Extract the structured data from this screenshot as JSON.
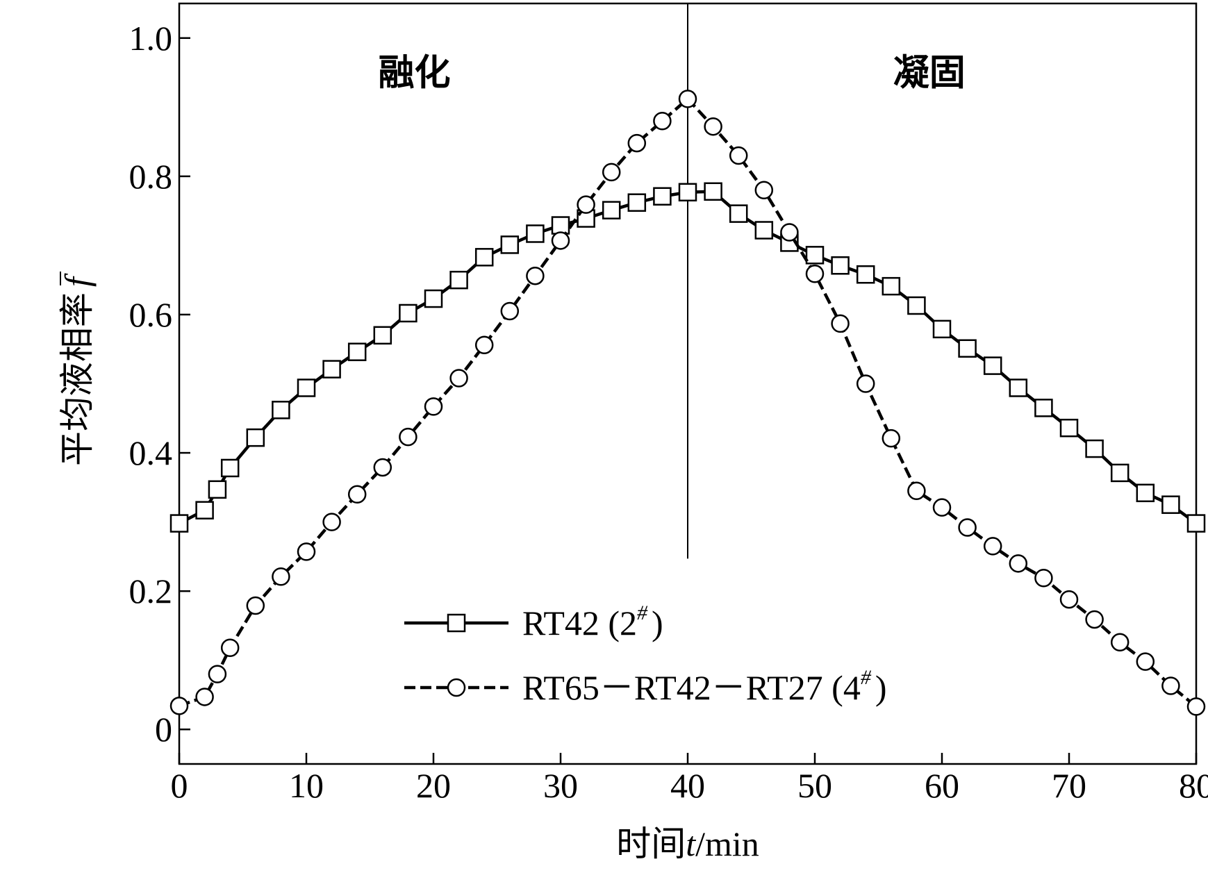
{
  "chart_data": {
    "type": "line",
    "title": "",
    "xlabel_prefix": "时间",
    "xlabel_var": "t",
    "xlabel_unit": "/min",
    "ylabel_text": "平均液相率",
    "ylabel_var": "f",
    "xlim": [
      0,
      80
    ],
    "ylim": [
      -0.05,
      1.05
    ],
    "xticks": [
      0,
      10,
      20,
      30,
      40,
      50,
      60,
      70,
      80
    ],
    "xtick_labels": [
      "0",
      "10",
      "20",
      "30",
      "40",
      "50",
      "60",
      "70",
      "80"
    ],
    "yticks": [
      0,
      0.2,
      0.4,
      0.6,
      0.8,
      1.0
    ],
    "ytick_labels": [
      "0",
      "0.2",
      "0.4",
      "0.6",
      "0.8",
      "1.0"
    ],
    "grid": false,
    "legend_position": "bottom-center",
    "divider_x": 40,
    "annotations": [
      {
        "text": "融化",
        "x": 18.5,
        "y": 0.95
      },
      {
        "text": "凝固",
        "x": 59,
        "y": 0.95
      }
    ],
    "series": [
      {
        "name": "RT42 (2",
        "name_sup": "#",
        "name_tail": ")",
        "marker": "square",
        "line": "solid",
        "color": "#000000",
        "x": [
          0,
          2,
          3,
          4,
          6,
          8,
          10,
          12,
          14,
          16,
          18,
          20,
          22,
          24,
          26,
          28,
          30,
          32,
          34,
          36,
          38,
          40,
          42,
          44,
          46,
          48,
          50,
          52,
          54,
          56,
          58,
          60,
          62,
          64,
          66,
          68,
          70,
          72,
          74,
          76,
          78,
          80
        ],
        "y": [
          0.298,
          0.317,
          0.347,
          0.378,
          0.422,
          0.462,
          0.494,
          0.521,
          0.546,
          0.57,
          0.602,
          0.623,
          0.65,
          0.683,
          0.701,
          0.717,
          0.729,
          0.739,
          0.751,
          0.762,
          0.771,
          0.777,
          0.778,
          0.746,
          0.722,
          0.704,
          0.686,
          0.671,
          0.658,
          0.641,
          0.613,
          0.579,
          0.551,
          0.526,
          0.494,
          0.465,
          0.436,
          0.406,
          0.371,
          0.342,
          0.325,
          0.298
        ]
      },
      {
        "name": "RT65－RT42－RT27 (4",
        "name_sup": "#",
        "name_tail": ")",
        "marker": "circle",
        "line": "dashed",
        "color": "#000000",
        "x": [
          0,
          2,
          3,
          4,
          6,
          8,
          10,
          12,
          14,
          16,
          18,
          20,
          22,
          24,
          26,
          28,
          30,
          32,
          34,
          36,
          38,
          40,
          42,
          44,
          46,
          48,
          50,
          52,
          54,
          56,
          58,
          60,
          62,
          64,
          66,
          68,
          70,
          72,
          74,
          76,
          78,
          80
        ],
        "y": [
          0.034,
          0.047,
          0.08,
          0.118,
          0.179,
          0.221,
          0.257,
          0.3,
          0.34,
          0.379,
          0.423,
          0.467,
          0.508,
          0.556,
          0.605,
          0.656,
          0.707,
          0.759,
          0.806,
          0.848,
          0.88,
          0.912,
          0.872,
          0.83,
          0.78,
          0.719,
          0.659,
          0.587,
          0.5,
          0.421,
          0.345,
          0.321,
          0.292,
          0.265,
          0.24,
          0.219,
          0.188,
          0.159,
          0.126,
          0.098,
          0.063,
          0.033
        ]
      }
    ]
  }
}
